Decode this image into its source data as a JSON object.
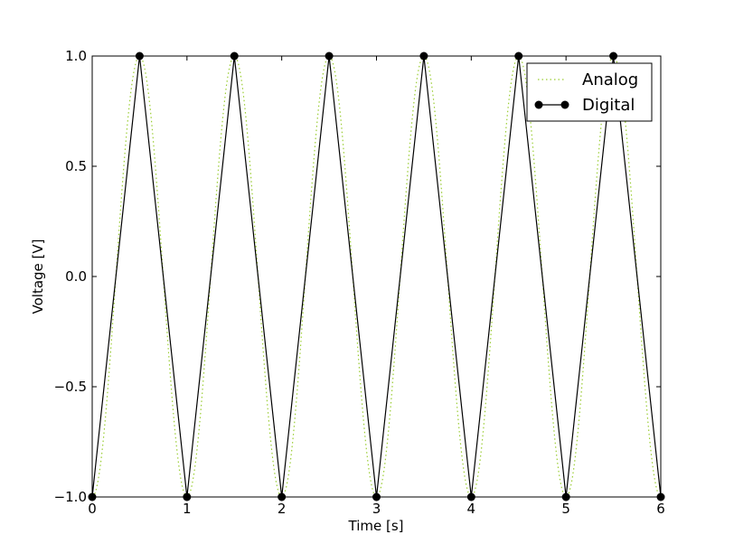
{
  "chart_data": {
    "type": "line",
    "title": "",
    "xlabel": "Time [s]",
    "ylabel": "Voltage [V]",
    "xlim": [
      0,
      6
    ],
    "ylim": [
      -1.0,
      1.0
    ],
    "xticks": [
      0,
      1,
      2,
      3,
      4,
      5,
      6
    ],
    "xtick_labels": [
      "0",
      "1",
      "2",
      "3",
      "4",
      "5",
      "6"
    ],
    "yticks": [
      -1.0,
      -0.5,
      0.0,
      0.5,
      1.0
    ],
    "ytick_labels": [
      "−1.0",
      "−0.5",
      "0.0",
      "0.5",
      "1.0"
    ],
    "grid": false,
    "legend_position": "top-right",
    "series": [
      {
        "name": "Analog",
        "style": "dotted",
        "color": "#9acd32",
        "function": "-cos(2*pi*t)",
        "x_range": [
          0,
          6
        ]
      },
      {
        "name": "Digital",
        "style": "solid-with-markers",
        "color": "#000000",
        "x": [
          0,
          0.5,
          1,
          1.5,
          2,
          2.5,
          3,
          3.5,
          4,
          4.5,
          5,
          5.5,
          6
        ],
        "y": [
          -1,
          1,
          -1,
          1,
          -1,
          1,
          -1,
          1,
          -1,
          1,
          -1,
          1,
          -1
        ]
      }
    ]
  }
}
